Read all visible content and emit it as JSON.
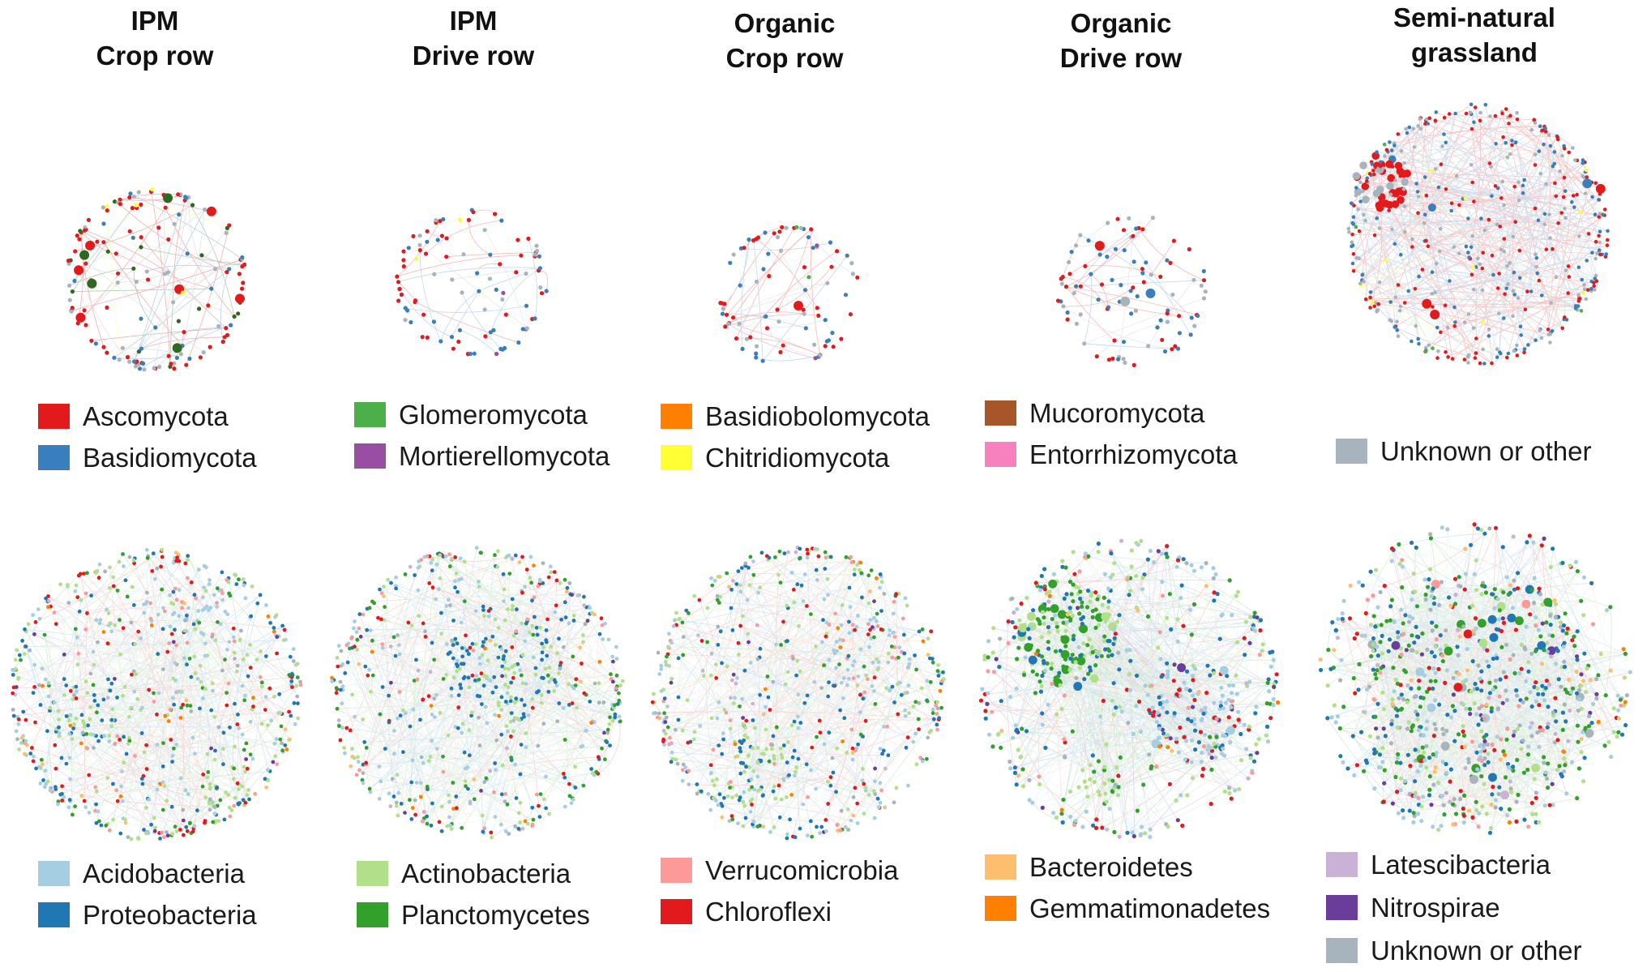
{
  "columns": [
    {
      "title_1": "IPM",
      "title_2": "Crop row"
    },
    {
      "title_1": "IPM",
      "title_2": "Drive row"
    },
    {
      "title_1": "Organic",
      "title_2": "Crop row"
    },
    {
      "title_1": "Organic",
      "title_2": "Drive row"
    },
    {
      "title_1": "Semi-natural",
      "title_2": "grassland"
    }
  ],
  "fungi_legend": [
    [
      {
        "label": "Ascomycota",
        "color": "#e31a1c"
      },
      {
        "label": "Basidiomycota",
        "color": "#3a7fbd"
      }
    ],
    [
      {
        "label": "Glomeromycota",
        "color": "#4daf4a"
      },
      {
        "label": "Mortierellomycota",
        "color": "#984ea3"
      }
    ],
    [
      {
        "label": "Basidiobolomycota",
        "color": "#ff7f00"
      },
      {
        "label": "Chitridiomycota",
        "color": "#ffff33"
      }
    ],
    [
      {
        "label": "Mucoromycota",
        "color": "#a65628"
      },
      {
        "label": "Entorrhizomycota",
        "color": "#f781bf"
      }
    ],
    [
      {
        "label": "Unknown or other",
        "color": "#a7b4bd"
      }
    ]
  ],
  "bacteria_legend": [
    [
      {
        "label": "Acidobacteria",
        "color": "#a6cee3"
      },
      {
        "label": "Proteobacteria",
        "color": "#1f78b4"
      }
    ],
    [
      {
        "label": "Actinobacteria",
        "color": "#b2df8a"
      },
      {
        "label": "Planctomycetes",
        "color": "#33a02c"
      }
    ],
    [
      {
        "label": "Verrucomicrobia",
        "color": "#fb9a99"
      },
      {
        "label": "Chloroflexi",
        "color": "#e31a1c"
      }
    ],
    [
      {
        "label": "Bacteroidetes",
        "color": "#fdbf6f"
      },
      {
        "label": "Gemmatimonadetes",
        "color": "#ff7f00"
      }
    ],
    [
      {
        "label": "Latescibacteria",
        "color": "#cab2d6"
      },
      {
        "label": "Nitrospirae",
        "color": "#6a3d9a"
      },
      {
        "label": "Unknown or other",
        "color": "#a7b4bd"
      }
    ]
  ]
}
